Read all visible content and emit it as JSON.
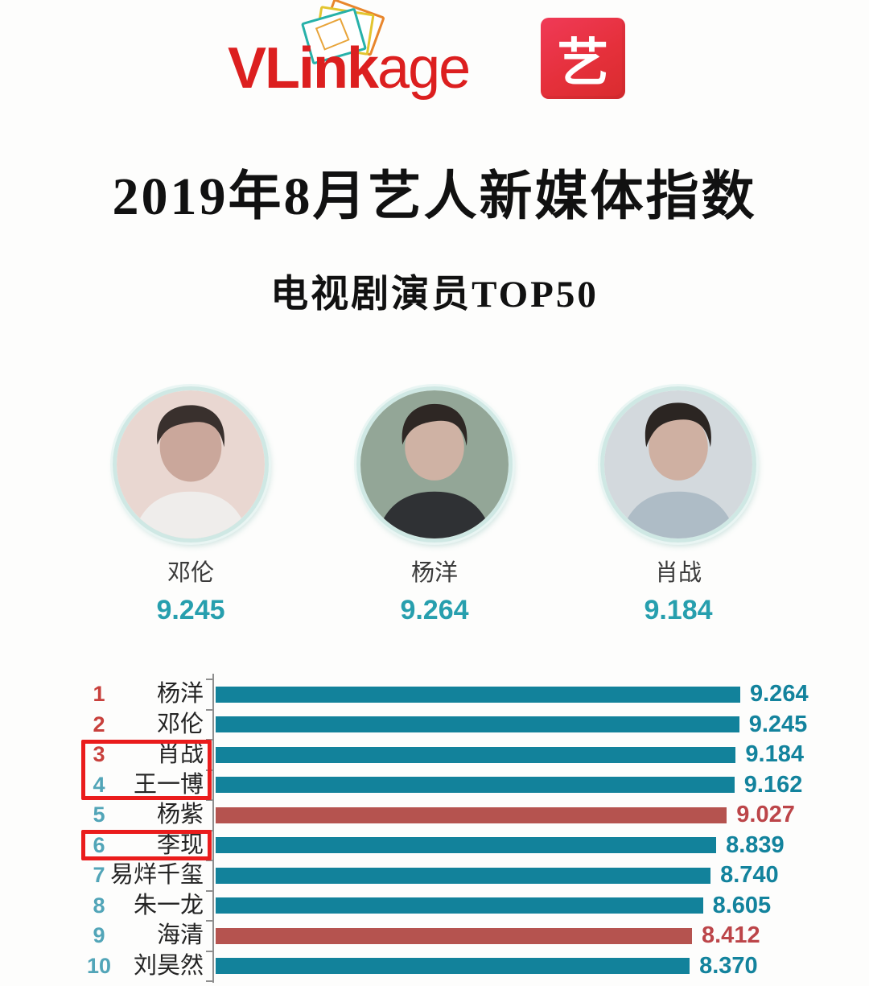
{
  "brand": {
    "logo_text_bold": "VLink",
    "logo_text_light": "age",
    "logo_color": "#dc1f1f",
    "app_icon_char": "艺",
    "app_icon_color": "#e5303b"
  },
  "header": {
    "title": "2019年8月艺人新媒体指数",
    "subtitle": "电视剧演员TOP50"
  },
  "top3": [
    {
      "name": "邓伦",
      "score": "9.245"
    },
    {
      "name": "杨洋",
      "score": "9.264"
    },
    {
      "name": "肖战",
      "score": "9.184"
    }
  ],
  "chart_data": {
    "type": "bar",
    "orientation": "horizontal",
    "title": "电视剧演员TOP50 艺人新媒体指数",
    "categories": [
      "杨洋",
      "邓伦",
      "肖战",
      "王一博",
      "杨紫",
      "李现",
      "易烊千玺",
      "朱一龙",
      "海清",
      "刘昊然"
    ],
    "ranks": [
      1,
      2,
      3,
      4,
      5,
      6,
      7,
      8,
      9,
      10
    ],
    "values": [
      9.264,
      9.245,
      9.184,
      9.162,
      9.027,
      8.839,
      8.74,
      8.605,
      8.412,
      8.37
    ],
    "xlim": [
      0,
      9.264
    ],
    "grid": false,
    "axis_line": true,
    "tick_count": 11,
    "bar_color_default": "#12829b",
    "bar_color_accent": "#b5534f",
    "accent_ranks": [
      5,
      9
    ],
    "value_color_default": "#13839d",
    "value_color_accent": "#bc4549",
    "rank_color_top3": "#c8403c",
    "rank_color_rest": "#52a5b8",
    "highlight_border_color": "#ea1c1c",
    "highlight_boxes": [
      {
        "rows": [
          3,
          4
        ]
      },
      {
        "rows": [
          6
        ]
      }
    ]
  }
}
